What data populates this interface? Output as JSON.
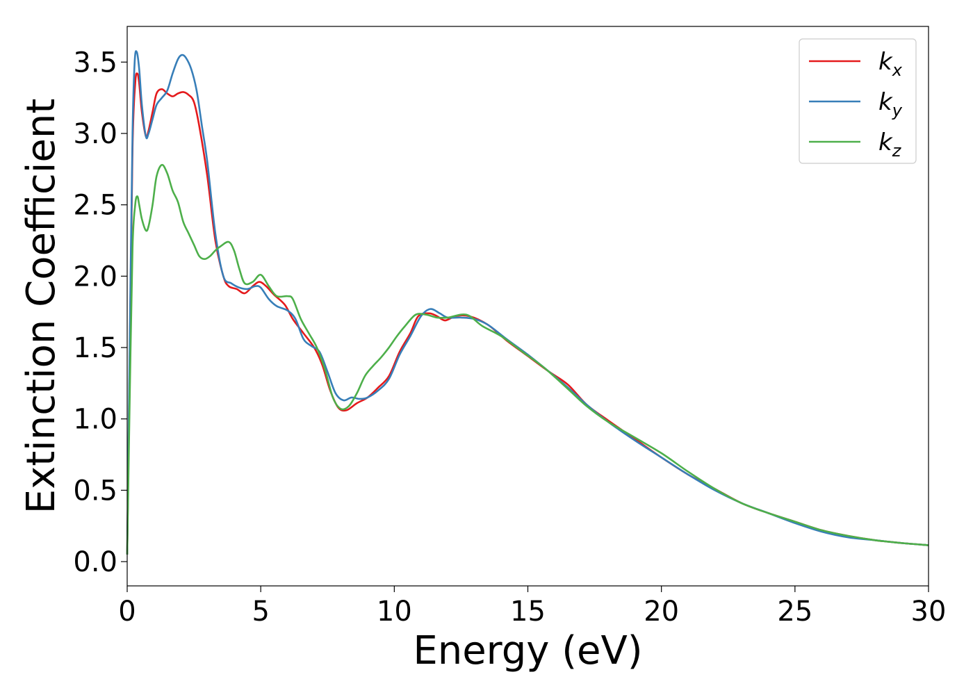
{
  "chart_data": {
    "type": "line",
    "xlabel": "Energy (eV)",
    "ylabel": "Extinction Coefficient",
    "xlim": [
      0,
      30
    ],
    "ylim": [
      -0.17,
      3.75
    ],
    "x_ticks": [
      "0",
      "5",
      "10",
      "15",
      "20",
      "25",
      "30"
    ],
    "y_ticks": [
      "0.0",
      "0.5",
      "1.0",
      "1.5",
      "2.0",
      "2.5",
      "3.0",
      "3.5"
    ],
    "grid": false,
    "legend_position": "top-right",
    "series": [
      {
        "name": "k_x",
        "label_base": "k",
        "label_sub": "x",
        "color": "#e41a1c",
        "points": [
          [
            0,
            0.05
          ],
          [
            0.1,
            1.5
          ],
          [
            0.2,
            2.9
          ],
          [
            0.3,
            3.35
          ],
          [
            0.38,
            3.42
          ],
          [
            0.45,
            3.35
          ],
          [
            0.55,
            3.15
          ],
          [
            0.7,
            2.98
          ],
          [
            0.8,
            3.02
          ],
          [
            0.95,
            3.15
          ],
          [
            1.1,
            3.28
          ],
          [
            1.3,
            3.31
          ],
          [
            1.5,
            3.28
          ],
          [
            1.7,
            3.26
          ],
          [
            1.9,
            3.28
          ],
          [
            2.1,
            3.29
          ],
          [
            2.3,
            3.27
          ],
          [
            2.5,
            3.22
          ],
          [
            2.7,
            3.05
          ],
          [
            3.0,
            2.7
          ],
          [
            3.3,
            2.25
          ],
          [
            3.6,
            2.0
          ],
          [
            3.8,
            1.93
          ],
          [
            4.1,
            1.91
          ],
          [
            4.4,
            1.88
          ],
          [
            4.7,
            1.93
          ],
          [
            4.95,
            1.96
          ],
          [
            5.2,
            1.93
          ],
          [
            5.5,
            1.87
          ],
          [
            5.9,
            1.8
          ],
          [
            6.2,
            1.7
          ],
          [
            6.6,
            1.6
          ],
          [
            7.0,
            1.5
          ],
          [
            7.3,
            1.38
          ],
          [
            7.6,
            1.2
          ],
          [
            7.9,
            1.08
          ],
          [
            8.2,
            1.06
          ],
          [
            8.6,
            1.11
          ],
          [
            9.0,
            1.15
          ],
          [
            9.4,
            1.22
          ],
          [
            9.8,
            1.3
          ],
          [
            10.2,
            1.47
          ],
          [
            10.6,
            1.6
          ],
          [
            10.9,
            1.72
          ],
          [
            11.3,
            1.74
          ],
          [
            11.6,
            1.72
          ],
          [
            11.9,
            1.69
          ],
          [
            12.3,
            1.72
          ],
          [
            12.8,
            1.72
          ],
          [
            13.5,
            1.66
          ],
          [
            14.2,
            1.55
          ],
          [
            15.0,
            1.44
          ],
          [
            15.8,
            1.33
          ],
          [
            16.5,
            1.24
          ],
          [
            17.2,
            1.1
          ],
          [
            18.0,
            0.99
          ],
          [
            19.0,
            0.86
          ],
          [
            20.0,
            0.73
          ],
          [
            21.0,
            0.61
          ],
          [
            22.0,
            0.51
          ],
          [
            23.0,
            0.41
          ],
          [
            24.0,
            0.34
          ],
          [
            25.0,
            0.28
          ],
          [
            26.0,
            0.22
          ],
          [
            27.0,
            0.18
          ],
          [
            28.0,
            0.15
          ],
          [
            29.0,
            0.13
          ],
          [
            30.0,
            0.115
          ]
        ]
      },
      {
        "name": "k_y",
        "label_base": "k",
        "label_sub": "y",
        "color": "#377eb8",
        "points": [
          [
            0,
            0.05
          ],
          [
            0.1,
            1.6
          ],
          [
            0.2,
            3.0
          ],
          [
            0.28,
            3.5
          ],
          [
            0.36,
            3.57
          ],
          [
            0.45,
            3.45
          ],
          [
            0.55,
            3.2
          ],
          [
            0.7,
            2.98
          ],
          [
            0.8,
            3.0
          ],
          [
            0.95,
            3.1
          ],
          [
            1.1,
            3.2
          ],
          [
            1.3,
            3.25
          ],
          [
            1.5,
            3.3
          ],
          [
            1.7,
            3.42
          ],
          [
            1.9,
            3.52
          ],
          [
            2.05,
            3.55
          ],
          [
            2.2,
            3.53
          ],
          [
            2.4,
            3.45
          ],
          [
            2.6,
            3.3
          ],
          [
            2.8,
            3.05
          ],
          [
            3.0,
            2.8
          ],
          [
            3.3,
            2.3
          ],
          [
            3.6,
            2.0
          ],
          [
            3.9,
            1.95
          ],
          [
            4.2,
            1.92
          ],
          [
            4.5,
            1.91
          ],
          [
            4.8,
            1.93
          ],
          [
            5.0,
            1.92
          ],
          [
            5.3,
            1.84
          ],
          [
            5.6,
            1.79
          ],
          [
            6.0,
            1.76
          ],
          [
            6.3,
            1.7
          ],
          [
            6.6,
            1.56
          ],
          [
            6.9,
            1.51
          ],
          [
            7.2,
            1.47
          ],
          [
            7.5,
            1.33
          ],
          [
            7.8,
            1.18
          ],
          [
            8.1,
            1.13
          ],
          [
            8.4,
            1.15
          ],
          [
            8.7,
            1.14
          ],
          [
            9.0,
            1.15
          ],
          [
            9.4,
            1.2
          ],
          [
            9.8,
            1.28
          ],
          [
            10.2,
            1.45
          ],
          [
            10.6,
            1.58
          ],
          [
            11.0,
            1.72
          ],
          [
            11.35,
            1.77
          ],
          [
            11.7,
            1.74
          ],
          [
            12.0,
            1.71
          ],
          [
            12.5,
            1.71
          ],
          [
            13.0,
            1.7
          ],
          [
            13.5,
            1.66
          ],
          [
            14.2,
            1.56
          ],
          [
            15.0,
            1.45
          ],
          [
            15.8,
            1.33
          ],
          [
            16.5,
            1.22
          ],
          [
            17.2,
            1.1
          ],
          [
            18.0,
            0.98
          ],
          [
            19.0,
            0.85
          ],
          [
            20.0,
            0.73
          ],
          [
            21.0,
            0.61
          ],
          [
            22.0,
            0.5
          ],
          [
            23.0,
            0.41
          ],
          [
            24.0,
            0.34
          ],
          [
            25.0,
            0.27
          ],
          [
            26.0,
            0.21
          ],
          [
            27.0,
            0.17
          ],
          [
            28.0,
            0.15
          ],
          [
            29.0,
            0.13
          ],
          [
            30.0,
            0.115
          ]
        ]
      },
      {
        "name": "k_z",
        "label_base": "k",
        "label_sub": "z",
        "color": "#4daf4a",
        "points": [
          [
            0,
            0.05
          ],
          [
            0.1,
            1.2
          ],
          [
            0.2,
            2.2
          ],
          [
            0.3,
            2.5
          ],
          [
            0.38,
            2.56
          ],
          [
            0.45,
            2.5
          ],
          [
            0.55,
            2.4
          ],
          [
            0.7,
            2.32
          ],
          [
            0.8,
            2.35
          ],
          [
            0.95,
            2.5
          ],
          [
            1.1,
            2.7
          ],
          [
            1.3,
            2.78
          ],
          [
            1.5,
            2.72
          ],
          [
            1.7,
            2.6
          ],
          [
            1.9,
            2.52
          ],
          [
            2.1,
            2.38
          ],
          [
            2.3,
            2.3
          ],
          [
            2.5,
            2.22
          ],
          [
            2.7,
            2.14
          ],
          [
            2.9,
            2.12
          ],
          [
            3.1,
            2.14
          ],
          [
            3.3,
            2.18
          ],
          [
            3.5,
            2.21
          ],
          [
            3.8,
            2.24
          ],
          [
            4.0,
            2.18
          ],
          [
            4.2,
            2.05
          ],
          [
            4.4,
            1.95
          ],
          [
            4.7,
            1.96
          ],
          [
            5.0,
            2.01
          ],
          [
            5.3,
            1.93
          ],
          [
            5.6,
            1.86
          ],
          [
            6.0,
            1.86
          ],
          [
            6.2,
            1.84
          ],
          [
            6.5,
            1.7
          ],
          [
            6.8,
            1.6
          ],
          [
            7.1,
            1.5
          ],
          [
            7.4,
            1.35
          ],
          [
            7.7,
            1.15
          ],
          [
            8.0,
            1.07
          ],
          [
            8.3,
            1.09
          ],
          [
            8.6,
            1.18
          ],
          [
            8.9,
            1.3
          ],
          [
            9.2,
            1.37
          ],
          [
            9.5,
            1.43
          ],
          [
            9.8,
            1.5
          ],
          [
            10.1,
            1.58
          ],
          [
            10.4,
            1.65
          ],
          [
            10.8,
            1.73
          ],
          [
            11.2,
            1.73
          ],
          [
            11.6,
            1.71
          ],
          [
            12.0,
            1.71
          ],
          [
            12.7,
            1.73
          ],
          [
            13.3,
            1.65
          ],
          [
            14.0,
            1.58
          ],
          [
            14.8,
            1.47
          ],
          [
            15.6,
            1.36
          ],
          [
            16.5,
            1.21
          ],
          [
            17.2,
            1.09
          ],
          [
            18.0,
            0.98
          ],
          [
            19.0,
            0.87
          ],
          [
            20.0,
            0.76
          ],
          [
            21.0,
            0.63
          ],
          [
            22.0,
            0.51
          ],
          [
            23.0,
            0.41
          ],
          [
            24.0,
            0.34
          ],
          [
            25.0,
            0.28
          ],
          [
            26.0,
            0.22
          ],
          [
            27.0,
            0.18
          ],
          [
            28.0,
            0.15
          ],
          [
            29.0,
            0.13
          ],
          [
            30.0,
            0.115
          ]
        ]
      }
    ]
  }
}
